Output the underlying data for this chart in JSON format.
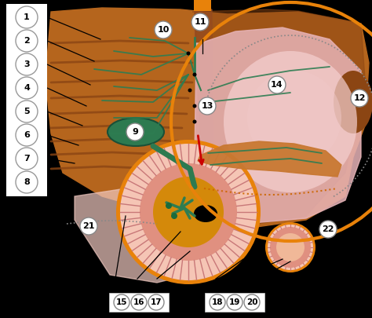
{
  "background": "#000000",
  "liver_brown": "#b5651d",
  "liver_dark_brown": "#8B4513",
  "liver_mid": "#a0522d",
  "stomach_pink": "#e8b4b8",
  "stomach_light_pink": "#f5d0d0",
  "stomach_pale": "#f0c8c8",
  "orange_line": "#e8820a",
  "green_vessel": "#2e7d52",
  "duod_orange": "#e8820a",
  "duod_pink": "#f0b0a0",
  "duod_inner": "#e89080",
  "duod_center_orange": "#d4890a",
  "spleen_dark": "#7a3e1a",
  "spleen_pink": "#d4a0a0",
  "pancreas_brown": "#c87832",
  "label_bg": "#ffffff",
  "black": "#000000",
  "red_arrow": "#cc0000",
  "white": "#ffffff"
}
